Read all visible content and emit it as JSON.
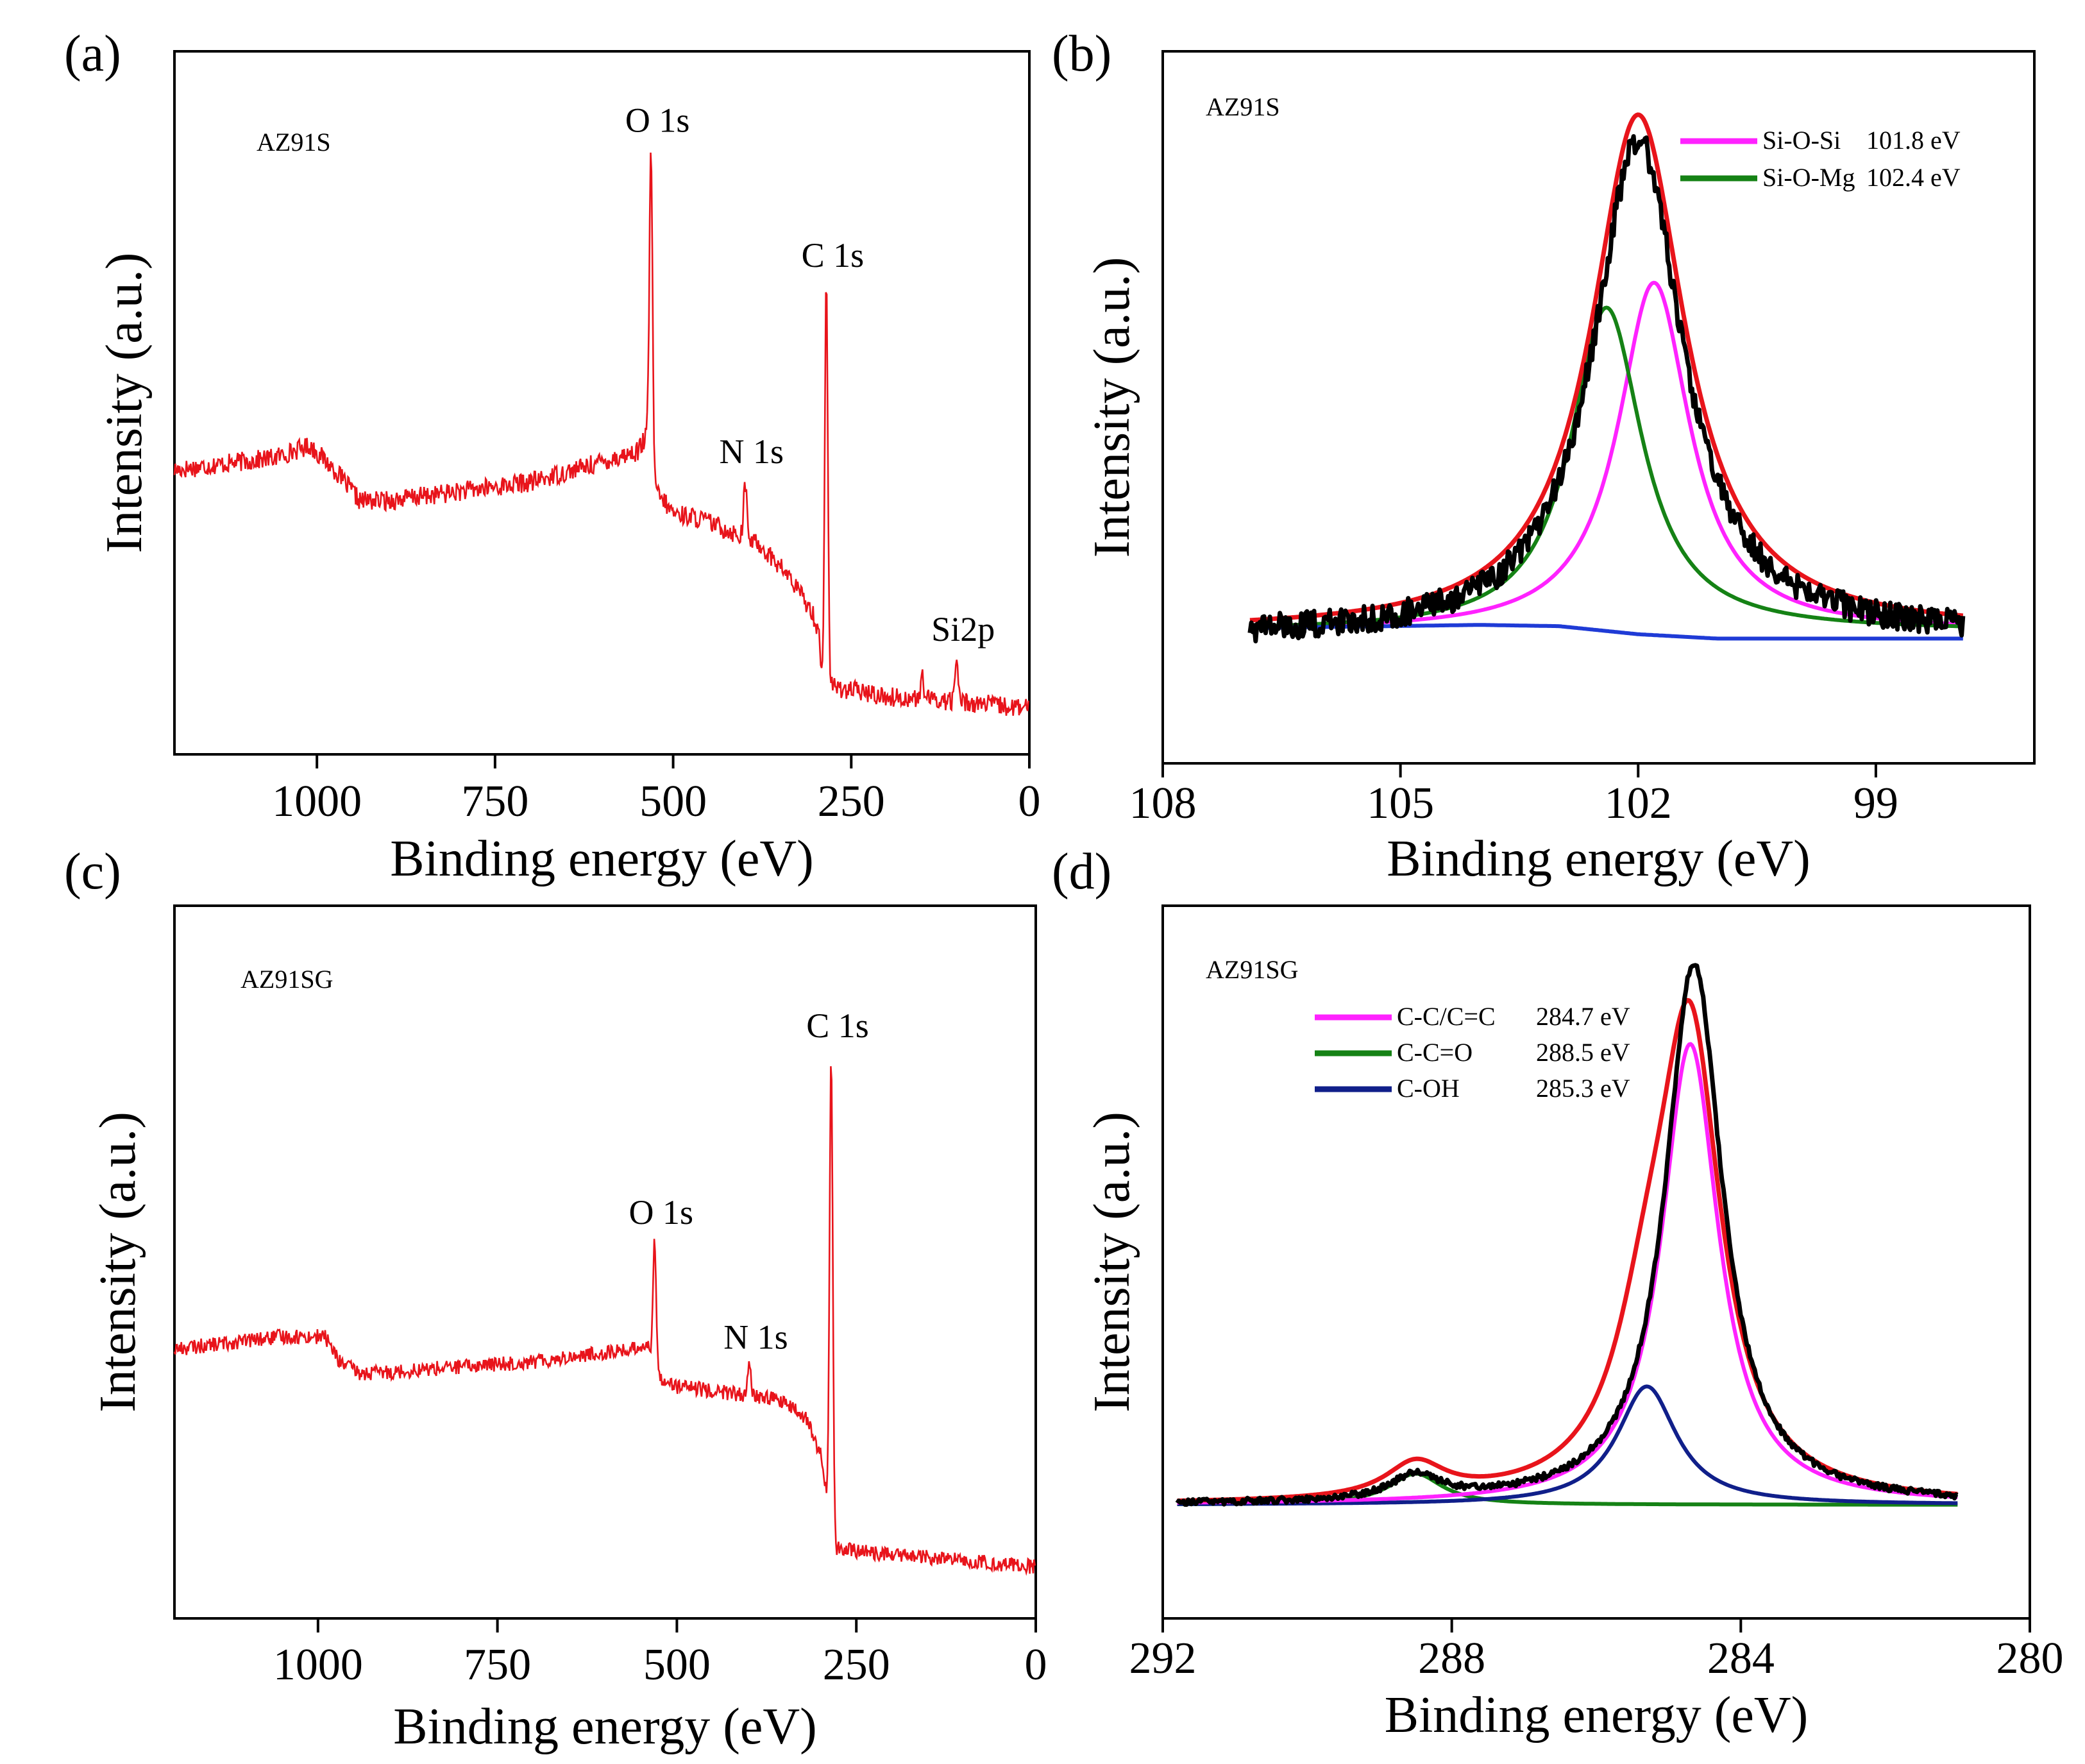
{
  "chart_data": [
    {
      "panel": "(a)",
      "type": "line",
      "sample": "AZ91S",
      "xlabel": "Binding energy (eV)",
      "ylabel": "Intensity (a.u.)",
      "xlim": [
        1200,
        0
      ],
      "ylim": [
        0,
        100
      ],
      "xticks": [
        1000,
        750,
        500,
        250,
        0
      ],
      "color": "#e8141b",
      "segments": [
        [
          1200,
          38
        ],
        [
          1060,
          40
        ],
        [
          1010,
          42
        ],
        [
          975,
          38
        ],
        [
          940,
          33
        ],
        [
          900,
          33
        ],
        [
          700,
          36
        ],
        [
          550,
          41
        ],
        [
          535,
          44
        ],
        [
          528,
          35
        ],
        [
          500,
          31
        ],
        [
          460,
          30
        ],
        [
          420,
          28
        ],
        [
          380,
          26
        ],
        [
          340,
          21
        ],
        [
          305,
          15
        ],
        [
          295,
          11
        ],
        [
          290,
          3
        ],
        [
          200,
          1
        ],
        [
          100,
          0.3
        ],
        [
          0,
          -1
        ]
      ],
      "noise": 1.6,
      "peaks": [
        {
          "label": "O 1s",
          "x": 531,
          "y": 90
        },
        {
          "label": "N 1s",
          "x": 399,
          "y": 36
        },
        {
          "label": "C 1s",
          "x": 285,
          "y": 68
        },
        {
          "label": "Si2p",
          "x": 102,
          "y": 7
        },
        {
          "label": "",
          "x": 150,
          "y": 4
        }
      ]
    },
    {
      "panel": "(b)",
      "type": "line",
      "sample": "AZ91S",
      "xlabel": "Binding energy (eV)",
      "ylabel": "Intensity (a.u.)",
      "xlim": [
        108,
        97
      ],
      "ylim": [
        0,
        100
      ],
      "xticks": [
        108,
        105,
        102,
        99
      ],
      "legend": [
        {
          "name": "Si-O-Si",
          "value": "101.8 eV",
          "color": "#ff22ff"
        },
        {
          "name": "Si-O-Mg",
          "value": "102.4 eV",
          "color": "#158215"
        }
      ],
      "series": [
        {
          "name": "Si-O-Si",
          "color": "#ff22ff",
          "center": 101.8,
          "height": 56,
          "width": 0.55,
          "baseline": 13
        },
        {
          "name": "Si-O-Mg",
          "color": "#158215",
          "center": 102.4,
          "height": 52,
          "width": 0.55,
          "baseline": 13
        },
        {
          "name": "Background",
          "color": "#1f3bd6",
          "points": [
            [
              106.9,
              13.5
            ],
            [
              104,
              14
            ],
            [
              103,
              13.8
            ],
            [
              102,
              12.5
            ],
            [
              101,
              11.8
            ],
            [
              97.9,
              11.8
            ]
          ]
        },
        {
          "name": "Fit envelope",
          "color": "#e8141b",
          "center": 102.0,
          "height": 83,
          "width": 0.72,
          "baseline": 13
        },
        {
          "name": "Measured",
          "color": "#000000",
          "center": 102.0,
          "height": 80,
          "width": 0.68,
          "baseline": 12,
          "noise": 2.2
        }
      ],
      "x_range": [
        106.9,
        97.9
      ]
    },
    {
      "panel": "(c)",
      "type": "line",
      "sample": "AZ91SG",
      "xlabel": "Binding energy (eV)",
      "ylabel": "Intensity (a.u.)",
      "xlim": [
        1200,
        0
      ],
      "ylim": [
        0,
        100
      ],
      "xticks": [
        1000,
        750,
        500,
        250,
        0
      ],
      "color": "#e8141b",
      "segments": [
        [
          1200,
          35
        ],
        [
          1050,
          37
        ],
        [
          990,
          37
        ],
        [
          970,
          33
        ],
        [
          940,
          31
        ],
        [
          700,
          33
        ],
        [
          560,
          35
        ],
        [
          540,
          36
        ],
        [
          530,
          31
        ],
        [
          500,
          29
        ],
        [
          430,
          28
        ],
        [
          360,
          27
        ],
        [
          320,
          24
        ],
        [
          300,
          18
        ],
        [
          290,
          11
        ],
        [
          285,
          3
        ],
        [
          200,
          2
        ],
        [
          100,
          1
        ],
        [
          0,
          0
        ]
      ],
      "noise": 1.2,
      "peaks": [
        {
          "label": "O 1s",
          "x": 531,
          "y": 52
        },
        {
          "label": "N 1s",
          "x": 399,
          "y": 32
        },
        {
          "label": "C 1s",
          "x": 285,
          "y": 82
        }
      ]
    },
    {
      "panel": "(d)",
      "type": "line",
      "sample": "AZ91SG",
      "xlabel": "Binding energy (eV)",
      "ylabel": "Intensity (a.u.)",
      "xlim": [
        292,
        280
      ],
      "ylim": [
        0,
        100
      ],
      "xticks": [
        292,
        288,
        284,
        280
      ],
      "legend": [
        {
          "name": "C-C/C=C",
          "value": "284.7 eV",
          "color": "#ff22ff"
        },
        {
          "name": "C-C=O",
          "value": "288.5 eV",
          "color": "#158215"
        },
        {
          "name": "C-OH",
          "value": "285.3 eV",
          "color": "#101f8a"
        }
      ],
      "series": [
        {
          "name": "C-C=O",
          "color": "#158215",
          "center": 288.5,
          "height": 5,
          "width": 0.45,
          "baseline": 10
        },
        {
          "name": "C-OH",
          "color": "#101f8a",
          "center": 285.3,
          "height": 19,
          "width": 0.5,
          "baseline": 10
        },
        {
          "name": "C-C/C=C",
          "color": "#ff22ff",
          "center": 284.7,
          "height": 74,
          "width": 0.48,
          "baseline": 10
        },
        {
          "name": "Fit envelope",
          "color": "#e8141b",
          "components": [
            [
              288.5,
              5.5,
              0.5
            ],
            [
              285.3,
              19,
              0.55
            ],
            [
              284.7,
              72,
              0.52
            ]
          ],
          "baseline": 10
        },
        {
          "name": "Measured",
          "color": "#000000",
          "center": 284.65,
          "height": 87,
          "width": 0.48,
          "baseline": 10,
          "noise": 0.5,
          "extra": [
            [
              288.5,
              4,
              0.4
            ]
          ]
        }
      ],
      "x_range": [
        291.8,
        281
      ]
    }
  ]
}
